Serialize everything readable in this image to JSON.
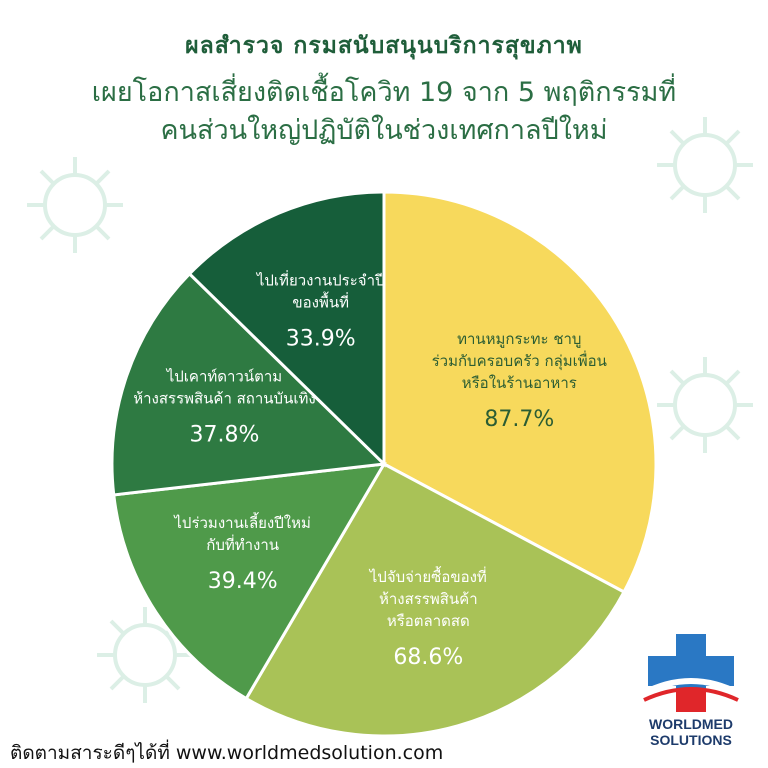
{
  "header": {
    "subtitle": "ผลสำรวจ กรมสนับสนุนบริการสุขภาพ",
    "title_line1": "เผยโอกาสเสี่ยงติดเชื้อโควิท 19 จาก 5 พฤติกรรมที่",
    "title_line2": "คนส่วนใหญ่ปฏิบัติในช่วงเทศกาลปีใหม่"
  },
  "chart_data": {
    "type": "pie",
    "categories": [
      "ทานหมูกระทะ ชาบู ร่วมกับครอบครัว กลุ่มเพื่อน หรือในร้านอาหาร",
      "ไปจับจ่ายซื้อของที่ ห้างสรรพสินค้า หรือตลาดสด",
      "ไปร่วมงานเลี้ยงปีใหม่ กับที่ทำงาน",
      "ไปเคาท์ดาวน์ตาม ห้างสรรพสินค้า สถานบันเทิง",
      "ไปเที่ยวงานประจำปี ของพื้นที่"
    ],
    "values": [
      87.7,
      68.6,
      39.4,
      37.8,
      33.9
    ],
    "value_labels": [
      "87.7%",
      "68.6%",
      "39.4%",
      "37.8%",
      "33.9%"
    ],
    "colors": [
      "#f7d95c",
      "#a9c257",
      "#4f9a4a",
      "#2e7a42",
      "#165e3a"
    ],
    "label_colors": [
      "#2b5d33",
      "#ffffff",
      "#ffffff",
      "#ffffff",
      "#ffffff"
    ],
    "label_lines": [
      [
        "ทานหมูกระทะ ชาบู",
        "ร่วมกับครอบครัว กลุ่มเพื่อน",
        "หรือในร้านอาหาร"
      ],
      [
        "ไปจับจ่ายซื้อของที่",
        "ห้างสรรพสินค้า",
        "หรือตลาดสด"
      ],
      [
        "ไปร่วมงานเลี้ยงปีใหม่",
        "กับที่ทำงาน"
      ],
      [
        "ไปเคาท์ดาวน์ตาม",
        "ห้างสรรพสินค้า สถานบันเทิง"
      ],
      [
        "ไปเที่ยวงานประจำปี",
        "ของพื้นที่"
      ]
    ],
    "title": "",
    "legend": "none"
  },
  "footer": {
    "text": "ติดตามสาระดีๆได้ที่ www.worldmedsolution.com"
  },
  "logo": {
    "line1": "WORLDMED",
    "line2": "SOLUTIONS",
    "colors": {
      "cross": "#2a78c4",
      "accent": "#e0262a"
    }
  },
  "background": {
    "virus_color": "#dcefe6"
  }
}
